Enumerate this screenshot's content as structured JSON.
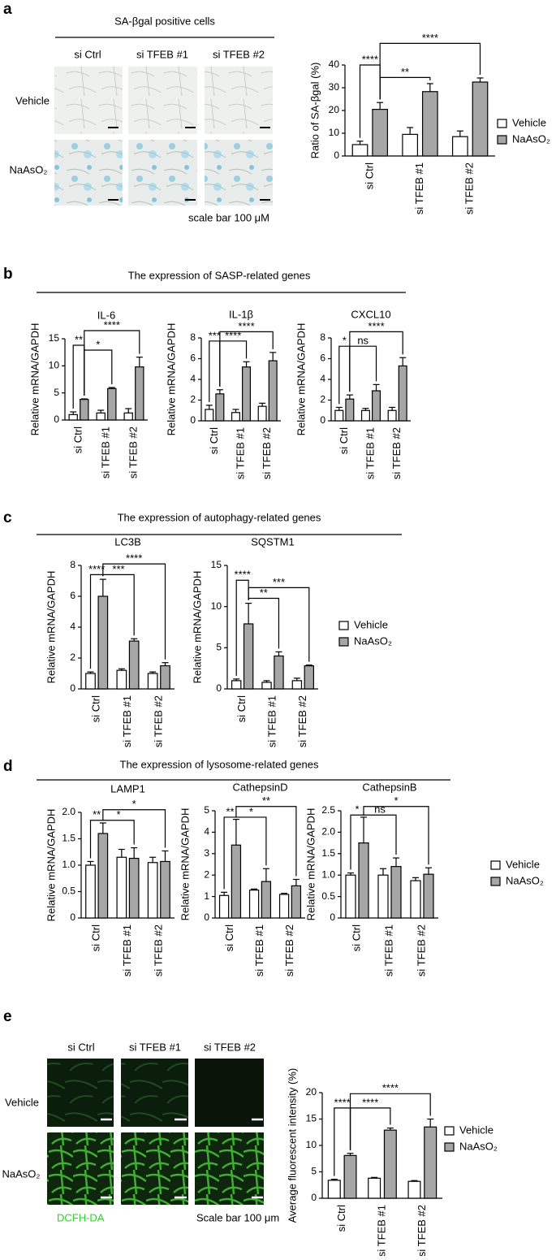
{
  "panels": [
    {
      "letter": "a",
      "heading": "SA-βgal positive cells",
      "columns": [
        "si Ctrl",
        "si TFEB #1",
        "si TFEB #2"
      ],
      "rows": [
        "Vehicle",
        "NaAsO₂"
      ],
      "note": "scale bar 100 μM"
    },
    {
      "letter": "b",
      "heading": "The expression of SASP-related genes"
    },
    {
      "letter": "c",
      "heading": "The expression of autophagy-related genes"
    },
    {
      "letter": "d",
      "heading": "The expression of lysosome-related genes"
    },
    {
      "letter": "e",
      "columns": [
        "si Ctrl",
        "si TFEB #1",
        "si TFEB #2"
      ],
      "rows": [
        "Vehicle",
        "NaAsO₂"
      ],
      "stain": "DCFH-DA",
      "note": "Scale bar 100 μm"
    }
  ],
  "chart_data": [
    {
      "type": "bar",
      "y_label": "Ratio of SA-βgal (%)",
      "categories": [
        "si Ctrl",
        "si TFEB #1",
        "si TFEB #2"
      ],
      "ylim": [
        0,
        40
      ],
      "yticks": [
        0,
        10,
        20,
        30,
        40
      ],
      "legend": "right",
      "series": [
        {
          "name": "Vehicle",
          "color": "#ffffff",
          "values": [
            5,
            9.5,
            8.5
          ],
          "errors": [
            1.5,
            3,
            2.5
          ]
        },
        {
          "name": "NaAsO₂",
          "color": "#a6a6a6",
          "values": [
            20.5,
            28.3,
            32.5
          ],
          "errors": [
            3,
            3.5,
            1.8
          ]
        }
      ],
      "annotations": [
        {
          "label": "****",
          "from": 0,
          "to": 1,
          "y": 40
        },
        {
          "label": "**",
          "from": 1,
          "to": 3,
          "y": 34.5
        },
        {
          "label": "****",
          "from": 1,
          "to": 5,
          "y": 49.5
        }
      ]
    },
    {
      "type": "bar",
      "title": "IL-6",
      "y_label": "Relative mRNA/GAPDH",
      "categories": [
        "si Ctrl",
        "si TFEB #1",
        "si TFEB #2"
      ],
      "ylim": [
        0,
        15
      ],
      "yticks": [
        0,
        5,
        10,
        15
      ],
      "series": [
        {
          "color": "#ffffff",
          "values": [
            1,
            1.3,
            1.3
          ],
          "errors": [
            0.5,
            0.5,
            0.8
          ]
        },
        {
          "color": "#a6a6a6",
          "values": [
            3.8,
            5.8,
            9.8
          ],
          "errors": [
            0.1,
            0.2,
            1.8
          ]
        }
      ],
      "annotations": [
        {
          "label": "**",
          "from": 0,
          "to": 1,
          "y": 13.8
        },
        {
          "label": "*",
          "from": 1,
          "to": 3,
          "y": 12.9
        },
        {
          "label": "****",
          "from": 1,
          "to": 5,
          "y": 16.5
        }
      ]
    },
    {
      "type": "bar",
      "title": "IL-1β",
      "y_label": "Relative mRNA/GAPDH",
      "categories": [
        "si Ctrl",
        "si TFEB #1",
        "si TFEB #2"
      ],
      "ylim": [
        0,
        8
      ],
      "yticks": [
        0,
        2,
        4,
        6,
        8
      ],
      "series": [
        {
          "color": "#ffffff",
          "values": [
            1.1,
            0.8,
            1.4
          ],
          "errors": [
            0.4,
            0.3,
            0.3
          ]
        },
        {
          "color": "#a6a6a6",
          "values": [
            2.6,
            5.2,
            5.8
          ],
          "errors": [
            0.4,
            0.5,
            0.8
          ]
        }
      ],
      "annotations": [
        {
          "label": "***",
          "from": 0,
          "to": 1,
          "y": 7.7
        },
        {
          "label": "****",
          "from": 1,
          "to": 3,
          "y": 7.7
        },
        {
          "label": "****",
          "from": 1,
          "to": 5,
          "y": 8.6
        }
      ]
    },
    {
      "type": "bar",
      "title": "CXCL10",
      "y_label": "Relative mRNA/GAPDH",
      "categories": [
        "si Ctrl",
        "si TFEB #1",
        "si TFEB #2"
      ],
      "ylim": [
        0,
        8
      ],
      "yticks": [
        0,
        2,
        4,
        6,
        8
      ],
      "series": [
        {
          "color": "#ffffff",
          "values": [
            1,
            1,
            1
          ],
          "errors": [
            0.3,
            0.2,
            0.3
          ]
        },
        {
          "color": "#a6a6a6",
          "values": [
            2.1,
            2.9,
            5.3
          ],
          "errors": [
            0.4,
            0.6,
            0.8
          ]
        }
      ],
      "annotations": [
        {
          "label": "*",
          "from": 0,
          "to": 1,
          "y": 7.2
        },
        {
          "label": "ns",
          "from": 1,
          "to": 3,
          "y": 7.2
        },
        {
          "label": "****",
          "from": 1,
          "to": 5,
          "y": 8.6
        }
      ]
    },
    {
      "type": "bar",
      "title": "LC3B",
      "y_label": "Relative mRNA/GAPDH",
      "categories": [
        "si Ctrl",
        "si TFEB #1",
        "si TFEB #2"
      ],
      "ylim": [
        0,
        8
      ],
      "yticks": [
        0,
        2,
        4,
        6,
        8
      ],
      "series": [
        {
          "color": "#ffffff",
          "values": [
            1,
            1.2,
            1
          ],
          "errors": [
            0.1,
            0.1,
            0.1
          ]
        },
        {
          "color": "#a6a6a6",
          "values": [
            6,
            3.1,
            1.5
          ],
          "errors": [
            1.1,
            0.15,
            0.2
          ]
        }
      ],
      "annotations": [
        {
          "label": "****",
          "from": 0,
          "to": 1,
          "y": 7.4
        },
        {
          "label": "***",
          "from": 1,
          "to": 3,
          "y": 7.4
        },
        {
          "label": "****",
          "from": 1,
          "to": 5,
          "y": 8.1
        }
      ]
    },
    {
      "type": "bar",
      "title": "SQSTM1",
      "y_label": "Relative mRNA/GAPDH",
      "categories": [
        "si Ctrl",
        "si TFEB #1",
        "si TFEB #2"
      ],
      "ylim": [
        0,
        15
      ],
      "yticks": [
        0,
        5,
        10,
        15
      ],
      "legend": "right",
      "series": [
        {
          "name": "Vehicle",
          "color": "#ffffff",
          "values": [
            1,
            0.8,
            1
          ],
          "errors": [
            0.2,
            0.2,
            0.3
          ]
        },
        {
          "name": "NaAsO₂",
          "color": "#a6a6a6",
          "values": [
            7.9,
            4,
            2.8
          ],
          "errors": [
            2.5,
            0.5,
            0.1
          ]
        }
      ],
      "annotations": [
        {
          "label": "****",
          "from": 0,
          "to": 1,
          "y": 13.2
        },
        {
          "label": "**",
          "from": 1,
          "to": 3,
          "y": 11
        },
        {
          "label": "***",
          "from": 1,
          "to": 5,
          "y": 12.3
        }
      ]
    },
    {
      "type": "bar",
      "title": "LAMP1",
      "y_label": "Relative mRNA/GAPDH",
      "categories": [
        "si Ctrl",
        "si TFEB #1",
        "si TFEB #2"
      ],
      "ylim": [
        0,
        2
      ],
      "yticks": [
        0,
        0.5,
        {
          "value": 1,
          "label": "1.0"
        },
        1.5,
        {
          "value": 2,
          "label": "2.0"
        }
      ],
      "series": [
        {
          "color": "#ffffff",
          "values": [
            1,
            1.15,
            1.05
          ],
          "errors": [
            0.07,
            0.15,
            0.1
          ]
        },
        {
          "color": "#a6a6a6",
          "values": [
            1.6,
            1.13,
            1.07
          ],
          "errors": [
            0.2,
            0.2,
            0.2
          ]
        }
      ],
      "annotations": [
        {
          "label": "**",
          "from": 0,
          "to": 1,
          "y": 1.85
        },
        {
          "label": "*",
          "from": 1,
          "to": 3,
          "y": 1.85
        },
        {
          "label": "*",
          "from": 1,
          "to": 5,
          "y": 2.05
        }
      ]
    },
    {
      "type": "bar",
      "title": "CathepsinD",
      "y_label": "Relative mRNA/GAPDH",
      "categories": [
        "si Ctrl",
        "si TFEB #1",
        "si TFEB #2"
      ],
      "ylim": [
        0,
        5
      ],
      "yticks": [
        0,
        1,
        2,
        3,
        4,
        5
      ],
      "series": [
        {
          "color": "#ffffff",
          "values": [
            1.05,
            1.3,
            1.1
          ],
          "errors": [
            0.15,
            0.05,
            0.05
          ]
        },
        {
          "color": "#a6a6a6",
          "values": [
            3.4,
            1.7,
            1.5
          ],
          "errors": [
            1.2,
            0.6,
            0.3
          ]
        }
      ],
      "annotations": [
        {
          "label": "**",
          "from": 0,
          "to": 1,
          "y": 4.7
        },
        {
          "label": "*",
          "from": 1,
          "to": 3,
          "y": 4.7
        },
        {
          "label": "**",
          "from": 1,
          "to": 5,
          "y": 5.2
        }
      ]
    },
    {
      "type": "bar",
      "title": "CathepsinB",
      "y_label": "Relative mRNA/GAPDH",
      "categories": [
        "si Ctrl",
        "si TFEB #1",
        "si TFEB #2"
      ],
      "ylim": [
        0,
        2.5
      ],
      "yticks": [
        0,
        0.5,
        {
          "value": 1,
          "label": "1.0"
        },
        1.5,
        {
          "value": 2,
          "label": "2.0"
        },
        2.5
      ],
      "legend": "right",
      "series": [
        {
          "name": "Vehicle",
          "color": "#ffffff",
          "values": [
            1,
            1,
            0.87
          ],
          "errors": [
            0.05,
            0.15,
            0.07
          ]
        },
        {
          "name": "NaAsO₂",
          "color": "#a6a6a6",
          "values": [
            1.75,
            1.2,
            1.02
          ],
          "errors": [
            0.6,
            0.2,
            0.15
          ]
        }
      ],
      "annotations": [
        {
          "label": "*",
          "from": 0,
          "to": 1,
          "y": 2.4
        },
        {
          "label": "ns",
          "from": 1,
          "to": 3,
          "y": 2.4
        },
        {
          "label": "*",
          "from": 1,
          "to": 5,
          "y": 2.6
        }
      ]
    },
    {
      "type": "bar",
      "y_label": "Average fluorescent intensity (%)",
      "categories": [
        "si Ctrl",
        "si TFEB #1",
        "si TFEB #2"
      ],
      "ylim": [
        0,
        20
      ],
      "yticks": [
        0,
        5,
        10,
        15,
        20
      ],
      "legend": "right",
      "series": [
        {
          "name": "Vehicle",
          "color": "#ffffff",
          "values": [
            3.4,
            3.8,
            3.2
          ],
          "errors": [
            0.2,
            0.15,
            0.15
          ]
        },
        {
          "name": "NaAsO₂",
          "color": "#a6a6a6",
          "values": [
            8.1,
            12.9,
            13.5
          ],
          "errors": [
            0.4,
            0.4,
            1.5
          ]
        }
      ],
      "annotations": [
        {
          "label": "****",
          "from": 0,
          "to": 1,
          "y": 17.1
        },
        {
          "label": "****",
          "from": 1,
          "to": 3,
          "y": 17.1
        },
        {
          "label": "****",
          "from": 1,
          "to": 5,
          "y": 19.8
        }
      ]
    }
  ]
}
